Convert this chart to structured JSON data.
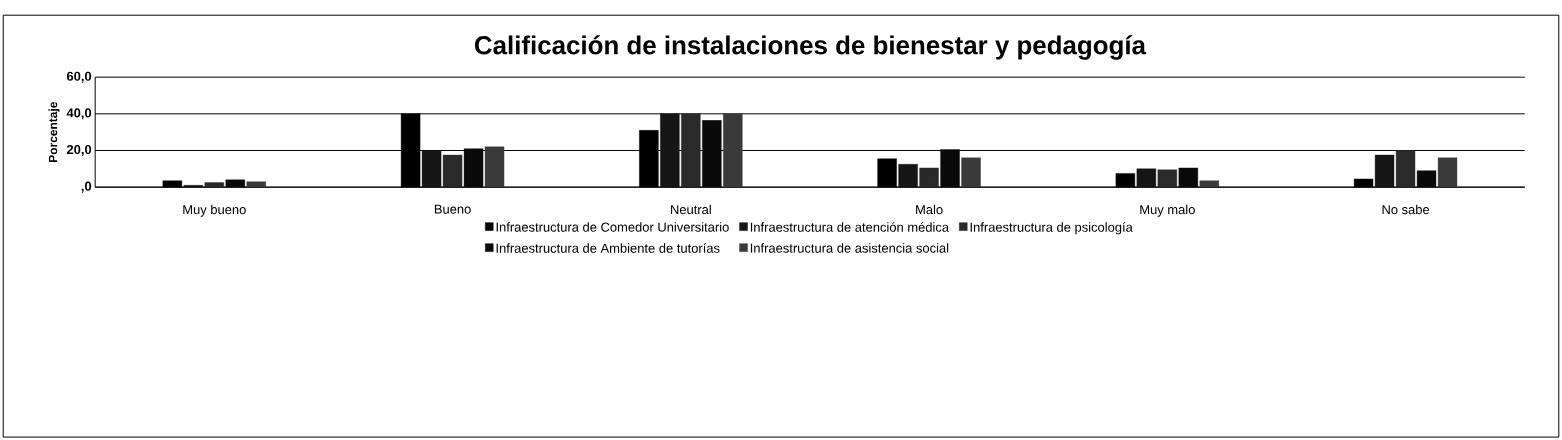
{
  "chart_data": {
    "type": "bar",
    "title": "Calificación de instalaciones de bienestar y pedagogía",
    "ylabel": "Porcentaje",
    "categories": [
      "Muy bueno",
      "Bueno",
      "Neutral",
      "Malo",
      "Muy malo",
      "No sabe"
    ],
    "series": [
      {
        "name": "Infraestructura de Comedor Universitario",
        "color": "#000000",
        "values": [
          3.5,
          40.0,
          31.0,
          15.5,
          7.5,
          4.5
        ]
      },
      {
        "name": "Infraestructura de atención médica",
        "color": "#151515",
        "values": [
          1.0,
          20.0,
          40.0,
          12.5,
          10.0,
          17.5
        ]
      },
      {
        "name": "Infraestructura de psicología",
        "color": "#2a2a2a",
        "values": [
          2.5,
          17.5,
          40.0,
          10.5,
          9.5,
          20.0
        ]
      },
      {
        "name": "Infraestructura de Ambiente de tutorías",
        "color": "#0a0a0a",
        "values": [
          4.0,
          21.0,
          36.5,
          20.5,
          10.5,
          9.0
        ]
      },
      {
        "name": "Infraestructura de asistencia social",
        "color": "#3a3a3a",
        "values": [
          3.0,
          22.0,
          40.0,
          16.0,
          3.5,
          16.0
        ]
      }
    ],
    "ylim": [
      0,
      60
    ],
    "yticks": [
      {
        "value": 0,
        "label": ",0"
      },
      {
        "value": 20,
        "label": "20,0"
      },
      {
        "value": 40,
        "label": "40,0"
      },
      {
        "value": 60,
        "label": "60,0"
      }
    ],
    "grid": "y",
    "legend": "bottom"
  }
}
